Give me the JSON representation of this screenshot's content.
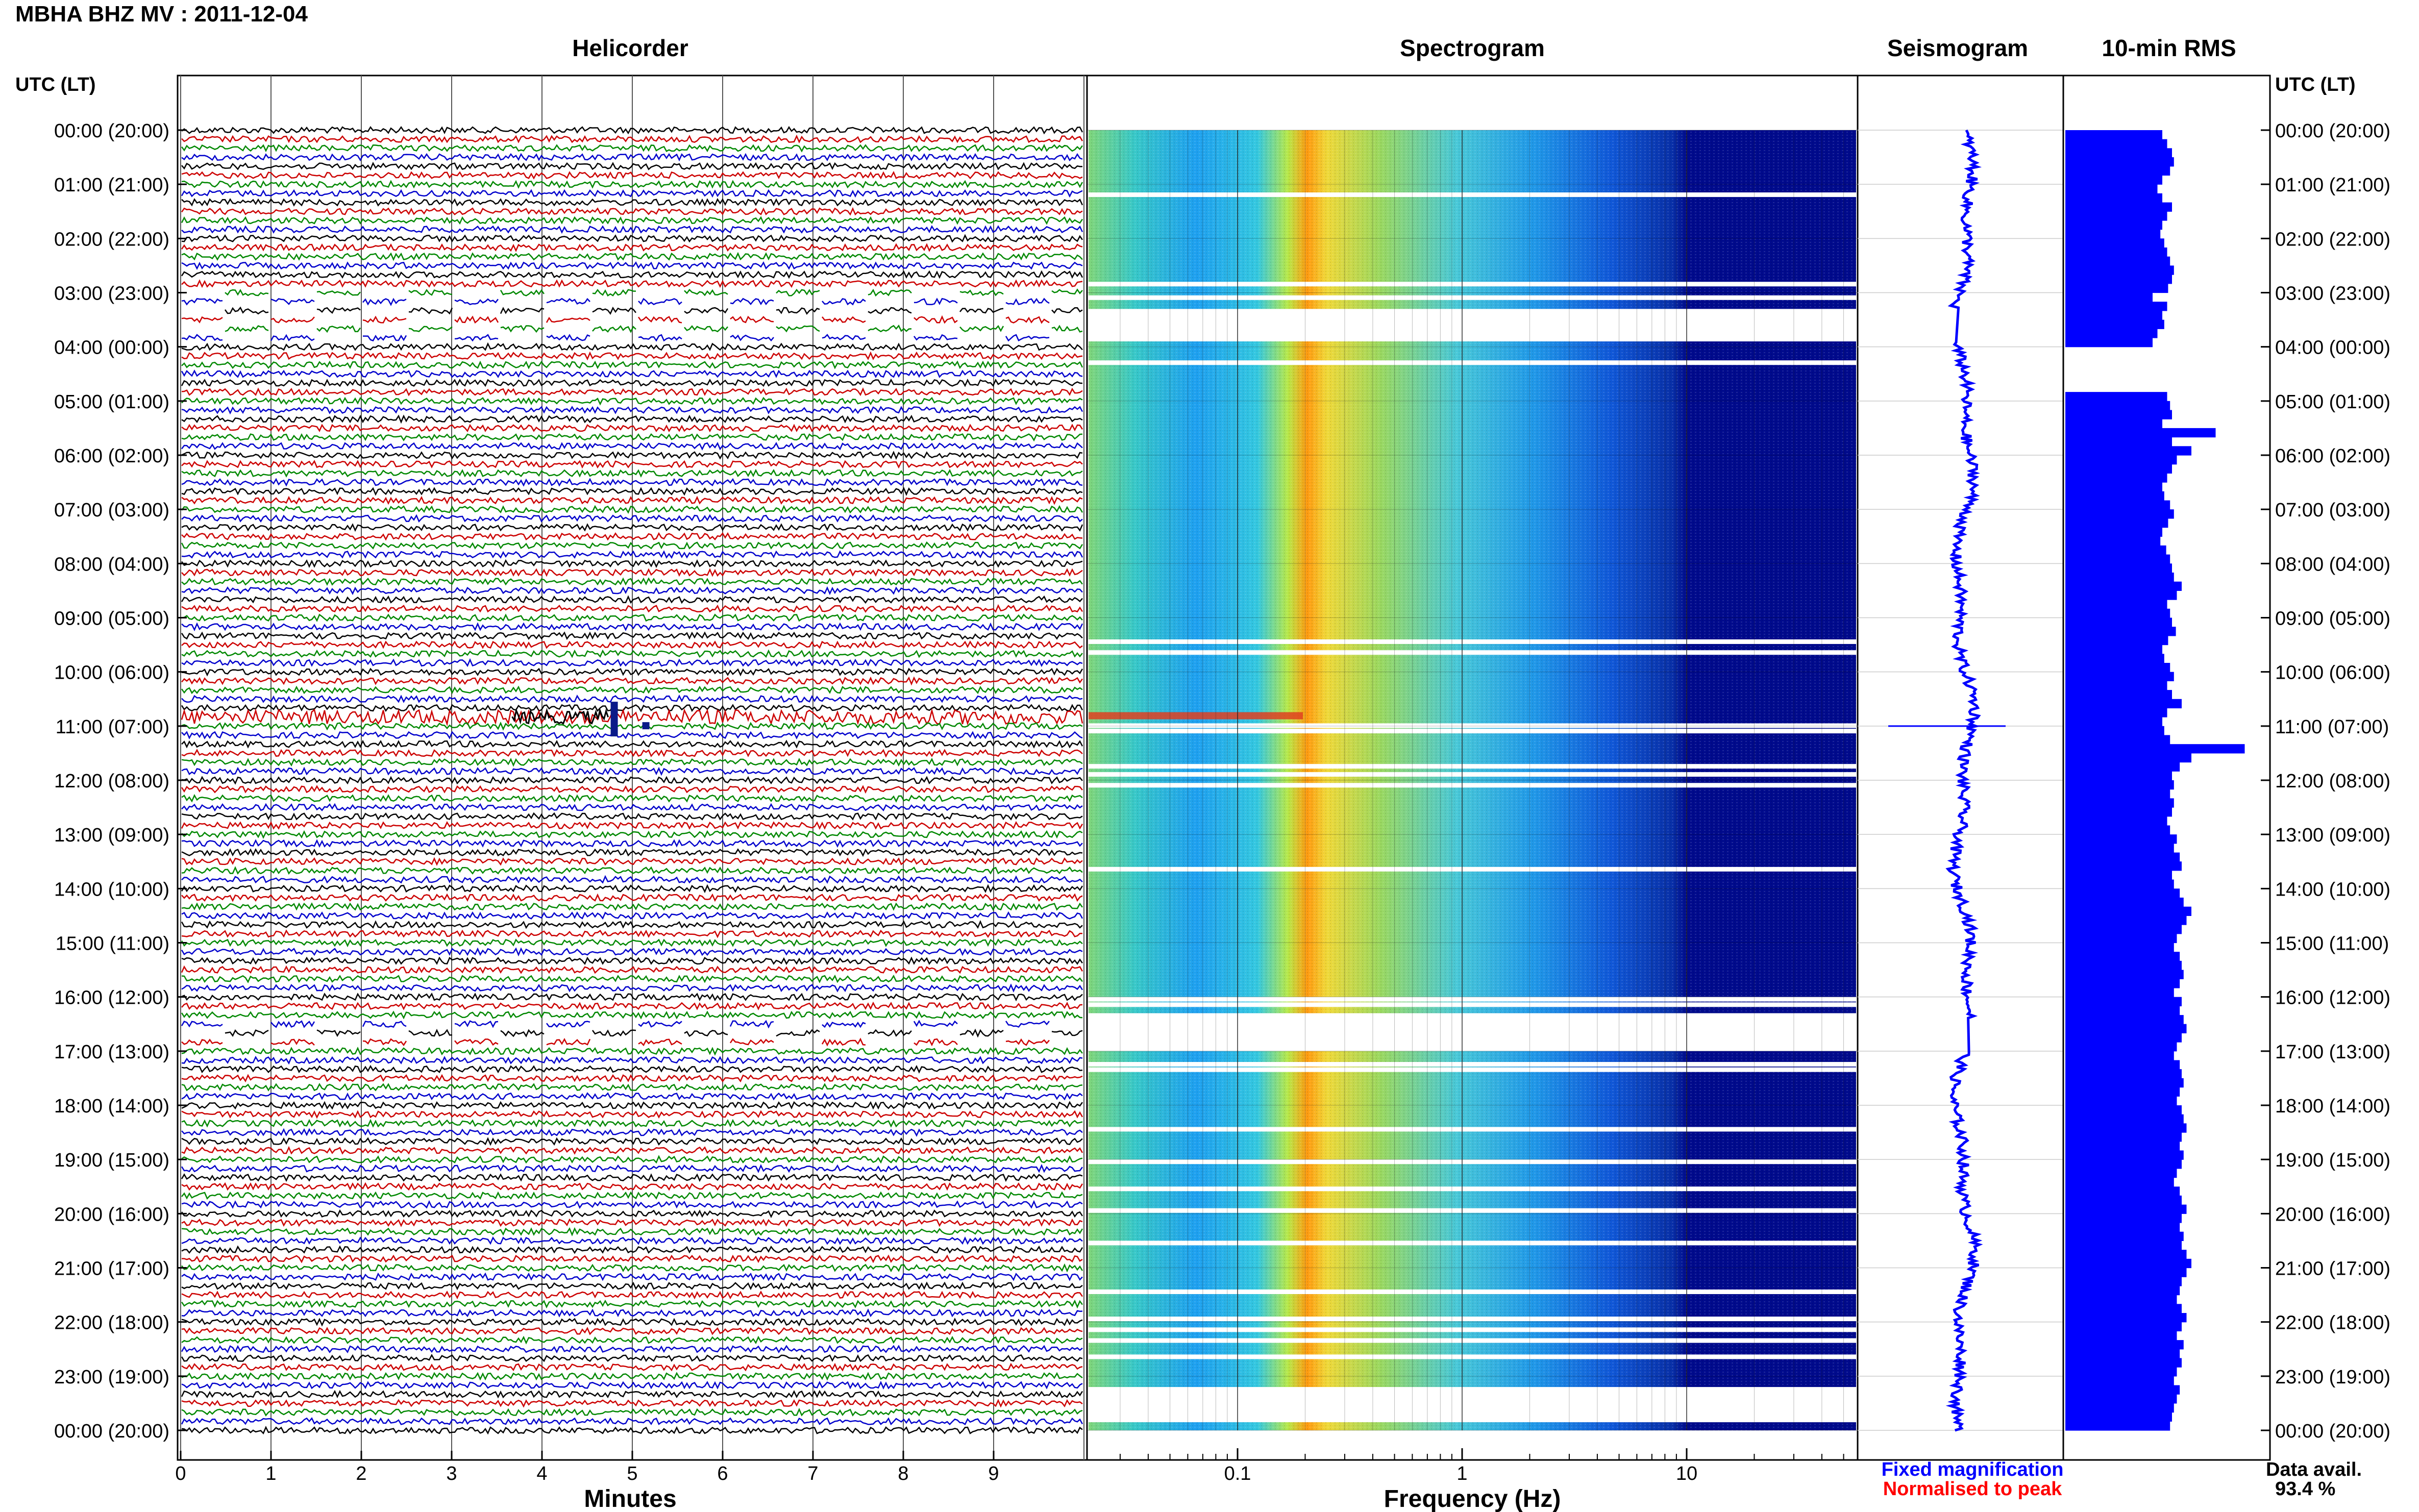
{
  "title": "MBHA BHZ MV : 2011-12-04",
  "panels": {
    "helicorder": "Helicorder",
    "spectrogram": "Spectrogram",
    "seismogram": "Seismogram",
    "rms": "10-min RMS"
  },
  "utc_label": "UTC (LT)",
  "time_labels": [
    "00:00 (20:00)",
    "01:00 (21:00)",
    "02:00 (22:00)",
    "03:00 (23:00)",
    "04:00 (00:00)",
    "05:00 (01:00)",
    "06:00 (02:00)",
    "07:00 (03:00)",
    "08:00 (04:00)",
    "09:00 (05:00)",
    "10:00 (06:00)",
    "11:00 (07:00)",
    "12:00 (08:00)",
    "13:00 (09:00)",
    "14:00 (10:00)",
    "15:00 (11:00)",
    "16:00 (12:00)",
    "17:00 (13:00)",
    "18:00 (14:00)",
    "19:00 (15:00)",
    "20:00 (16:00)",
    "21:00 (17:00)",
    "22:00 (18:00)",
    "23:00 (19:00)",
    "00:00 (20:00)"
  ],
  "xlabels": {
    "helicorder": "Minutes",
    "spectrogram": "Frequency (Hz)"
  },
  "minute_ticks": [
    "0",
    "1",
    "2",
    "3",
    "4",
    "5",
    "6",
    "7",
    "8",
    "9"
  ],
  "freq_ticks": [
    "0.1",
    "1",
    "10"
  ],
  "legend": {
    "fixed": "Fixed magnification",
    "normalised": "Normalised to peak"
  },
  "availability": {
    "label": "Data avail.",
    "value": "93.4 %"
  },
  "colors": {
    "fixed": "#0000ff",
    "normalised": "#ff0000",
    "trace_cycle": [
      "#000000",
      "#cc0000",
      "#008800",
      "#0000cc"
    ],
    "rms_bar": "#0000ff"
  },
  "chart_data": [
    {
      "type": "line",
      "title": "Helicorder",
      "xlabel": "Minutes",
      "xlim": [
        0,
        10
      ],
      "rows": 144,
      "row_minutes": 10,
      "events": [
        {
          "time_utc": "10:50",
          "minute": 4.8,
          "description": "large transient"
        }
      ],
      "gaps_utc": [
        "03:00-04:00",
        "16:30-17:00"
      ]
    },
    {
      "type": "heatmap",
      "title": "Spectrogram",
      "xlabel": "Frequency (Hz)",
      "xscale": "log",
      "xlim": [
        0.025,
        50
      ],
      "peak_band_hz": [
        0.2,
        0.3
      ],
      "gaps_utc": [
        "03:00-03:50",
        "16:20-17:00"
      ]
    },
    {
      "type": "line",
      "title": "Seismogram",
      "series": [
        {
          "name": "Fixed magnification",
          "color": "#0000ff"
        }
      ]
    },
    {
      "type": "bar",
      "title": "10-min RMS",
      "orientation": "horizontal",
      "interval_minutes": 10,
      "values_relative": [
        1,
        1.05,
        1.1,
        1.12,
        1.08,
        1,
        0.95,
        1,
        1.1,
        1.05,
        1,
        0.98,
        1.02,
        1.05,
        1.08,
        1.12,
        1.1,
        1.06,
        0.9,
        1.05,
        1,
        1.02,
        0.95,
        0.9,
        0,
        0,
        0,
        0,
        0,
        1.05,
        1.08,
        1.1,
        1,
        1.55,
        1.1,
        1.3,
        1.15,
        1.1,
        1.05,
        1,
        1.02,
        1.08,
        1.12,
        1.06,
        1,
        0.98,
        1.04,
        1.08,
        1.1,
        1.12,
        1.2,
        1.15,
        1.05,
        1.08,
        1.1,
        1.14,
        1.06,
        1,
        1.02,
        1.08,
        1.12,
        1.05,
        1.1,
        1.2,
        1.05,
        1,
        1.02,
        1.08,
        1.85,
        1.3,
        1.18,
        1.1,
        1.12,
        1.08,
        1.12,
        1.1,
        1.05,
        1.08,
        1.15,
        1.12,
        1.18,
        1.2,
        1.1,
        1.12,
        1.18,
        1.22,
        1.3,
        1.25,
        1.2,
        1.15,
        1.12,
        1.18,
        1.2,
        1.22,
        1.18,
        1.12,
        1.2,
        1.18,
        1.22,
        1.25,
        1.2,
        1.15,
        1.12,
        1.18,
        1.2,
        1.22,
        1.18,
        1.15,
        1.2,
        1.22,
        1.25,
        1.2,
        1.18,
        1.22,
        1.2,
        1.15,
        1.12,
        1.18,
        1.2,
        1.25,
        1.2,
        1.18,
        1.22,
        1.2,
        1.25,
        1.3,
        1.25,
        1.2,
        1.18,
        1.15,
        1.2,
        1.25,
        1.2,
        1.15,
        1.22,
        1.18,
        1.2,
        1.15,
        1.12,
        1.18,
        1.15,
        1.12,
        1.1,
        1.08
      ]
    }
  ]
}
